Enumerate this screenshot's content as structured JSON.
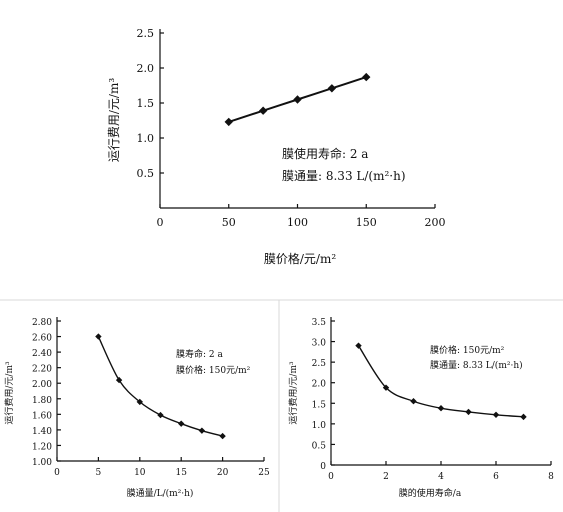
{
  "chart_data": [
    {
      "type": "line",
      "xlabel": "膜价格/元/m²",
      "ylabel": "运行费用/元/m³",
      "x_ticks": [
        "0",
        "50",
        "100",
        "150",
        "200"
      ],
      "y_ticks": [
        "0.5",
        "1.0",
        "1.5",
        "2.0",
        "2.5"
      ],
      "xlim": [
        0,
        200
      ],
      "ylim": [
        0,
        2.5
      ],
      "x": [
        50,
        75,
        100,
        125,
        150
      ],
      "values": [
        1.23,
        1.39,
        1.55,
        1.71,
        1.87
      ],
      "annotations": [
        "膜使用寿命: 2 a",
        "膜通量: 8.33 L/(m²·h)"
      ]
    },
    {
      "type": "line",
      "xlabel": "膜通量/L/(m²·h)",
      "ylabel": "运行费用/元/m³",
      "x_ticks": [
        "0",
        "5",
        "10",
        "15",
        "20",
        "25"
      ],
      "y_ticks": [
        "1.00",
        "1.20",
        "1.40",
        "1.60",
        "1.80",
        "2.00",
        "2.20",
        "2.40",
        "2.60",
        "2.80"
      ],
      "xlim": [
        0,
        25
      ],
      "ylim": [
        1.0,
        2.8
      ],
      "x": [
        5,
        7.5,
        10,
        12.5,
        15,
        17.5,
        20
      ],
      "values": [
        2.6,
        2.04,
        1.76,
        1.59,
        1.48,
        1.39,
        1.32
      ],
      "annotations": [
        "膜寿命: 2 a",
        "膜价格: 150元/m²"
      ]
    },
    {
      "type": "line",
      "xlabel": "膜的使用寿命/a",
      "ylabel": "运行费用/元/m³",
      "x_ticks": [
        "0",
        "2",
        "4",
        "6",
        "8"
      ],
      "y_ticks": [
        "0",
        "0.5",
        "1.0",
        "1.5",
        "2.0",
        "2.5",
        "3.0",
        "3.5"
      ],
      "xlim": [
        0,
        8
      ],
      "ylim": [
        0,
        3.5
      ],
      "x": [
        1,
        2,
        3,
        4,
        5,
        6,
        7
      ],
      "values": [
        2.9,
        1.88,
        1.55,
        1.38,
        1.29,
        1.22,
        1.17
      ],
      "annotations": [
        "膜价格: 150元/m²",
        "膜通量: 8.33 L/(m²·h)"
      ]
    }
  ]
}
